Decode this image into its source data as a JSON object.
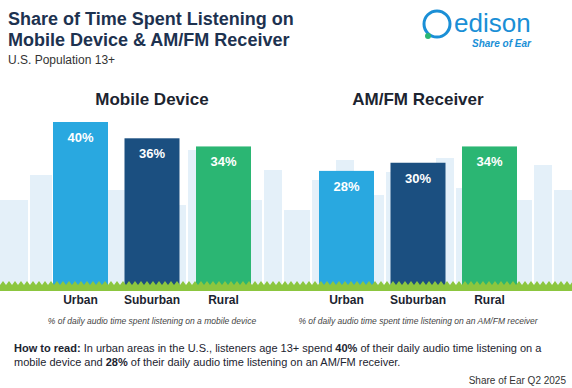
{
  "header": {
    "title_lines": [
      "Share of Time Spent Listening on",
      "Mobile Device & AM/FM Receiver"
    ],
    "subtitle": "U.S. Population 13+",
    "logo": "edison",
    "logo_tagline": "Share of Ear"
  },
  "chart_data": [
    {
      "type": "bar",
      "title": "Mobile Device",
      "categories": [
        "Urban",
        "Suburban",
        "Rural"
      ],
      "values": [
        40,
        36,
        34
      ],
      "value_labels": [
        "40%",
        "36%",
        "34%"
      ],
      "colors": [
        "#29a8e0",
        "#1b4f80",
        "#2bb673"
      ],
      "ylim": [
        0,
        40
      ],
      "data_labels": true,
      "tick_labels": "x",
      "xlabel": "% of daily audio time spent listening on a mobile device"
    },
    {
      "type": "bar",
      "title": "AM/FM Receiver",
      "categories": [
        "Urban",
        "Suburban",
        "Rural"
      ],
      "values": [
        28,
        30,
        34
      ],
      "value_labels": [
        "28%",
        "30%",
        "34%"
      ],
      "colors": [
        "#29a8e0",
        "#1b4f80",
        "#2bb673"
      ],
      "ylim": [
        0,
        40
      ],
      "data_labels": true,
      "tick_labels": "x",
      "xlabel": "% of daily audio time spent time listening on an AM/FM receiver"
    }
  ],
  "footer": {
    "how_to_read_label": "How to read:",
    "how_to_read": [
      "In urban areas in the U.S., listeners age 13+ spend ",
      "40%",
      " of their daily audio time listening on a mobile device and ",
      "28%",
      " of their daily audio time listening on an AM/FM receiver."
    ],
    "source": "Share of Ear Q2 2025"
  }
}
